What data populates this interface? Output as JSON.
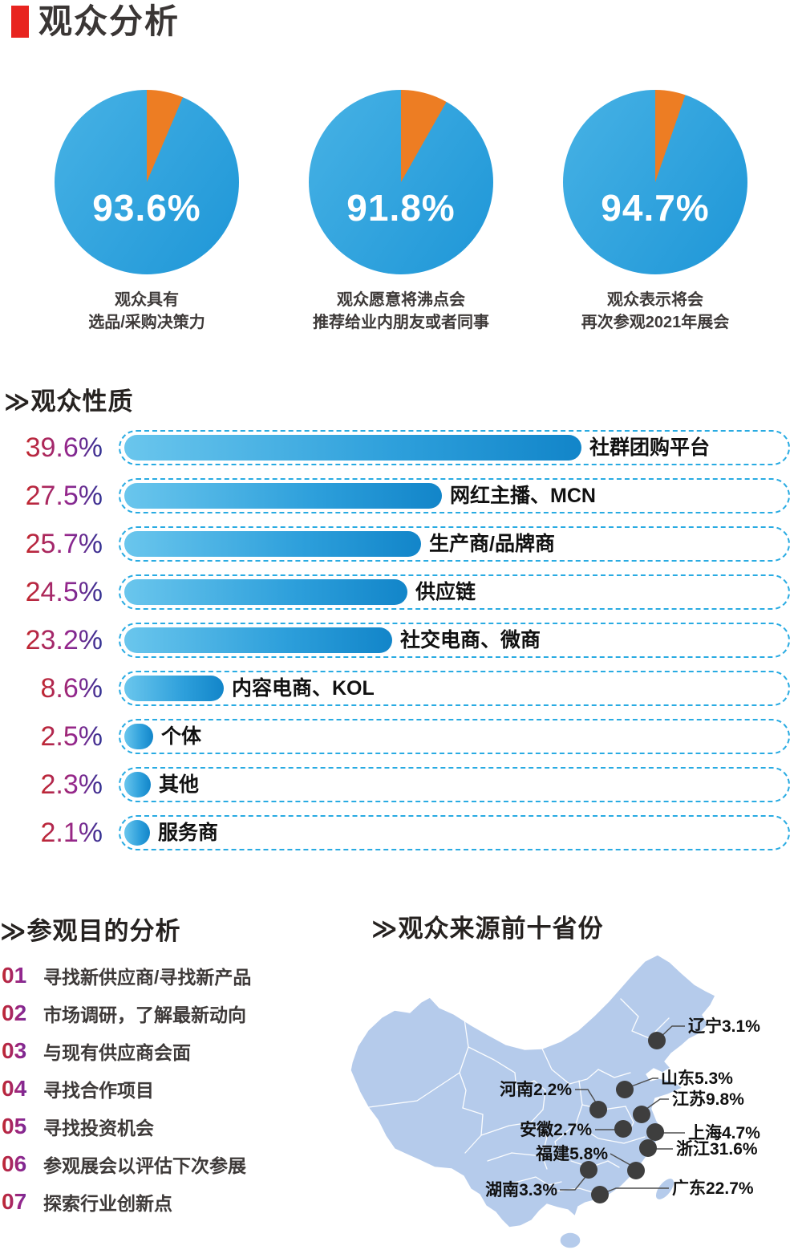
{
  "page_title": "观众分析",
  "colors": {
    "accent_red": "#E8241F",
    "pie_orange": "#ED7D23",
    "pie_blue_light": "#47B2E5",
    "pie_blue_dark": "#1E96D7",
    "bar_blue_light": "#6AC6ED",
    "bar_blue_dark": "#1285C9",
    "dash_border": "#29ABE2",
    "map_fill": "#B5CBEB",
    "map_dot": "#3E3E3E",
    "gradient_text_red": "#C1272D",
    "gradient_text_purple": "#93278F",
    "gradient_text_blue": "#2E3192"
  },
  "pies": [
    {
      "value": 93.6,
      "label": "93.6%",
      "caption_line1": "观众具有",
      "caption_line2": "选品/采购决策力"
    },
    {
      "value": 91.8,
      "label": "91.8%",
      "caption_line1": "观众愿意将沸点会",
      "caption_line2": "推荐给业内朋友或者同事"
    },
    {
      "value": 94.7,
      "label": "94.7%",
      "caption_line1": "观众表示将会",
      "caption_line2": "再次参观2021年展会"
    }
  ],
  "audience_section": {
    "title": "≫观众性质",
    "items": [
      {
        "label": "社群团购平台",
        "value": 39.6,
        "value_label": "39.6%"
      },
      {
        "label": "网红主播、MCN",
        "value": 27.5,
        "value_label": "27.5%"
      },
      {
        "label": "生产商/品牌商",
        "value": 25.7,
        "value_label": "25.7%"
      },
      {
        "label": "供应链",
        "value": 24.5,
        "value_label": "24.5%"
      },
      {
        "label": "社交电商、微商",
        "value": 23.2,
        "value_label": "23.2%"
      },
      {
        "label": "内容电商、KOL",
        "value": 8.6,
        "value_label": "8.6%"
      },
      {
        "label": "个体",
        "value": 2.5,
        "value_label": "2.5%"
      },
      {
        "label": "其他",
        "value": 2.3,
        "value_label": "2.3%"
      },
      {
        "label": "服务商",
        "value": 2.1,
        "value_label": "2.1%"
      }
    ]
  },
  "purpose_section": {
    "title": "≫参观目的分析",
    "items": [
      {
        "num": "01",
        "text": "寻找新供应商/寻找新产品"
      },
      {
        "num": "02",
        "text": "市场调研，了解最新动向"
      },
      {
        "num": "03",
        "text": "与现有供应商会面"
      },
      {
        "num": "04",
        "text": "寻找合作项目"
      },
      {
        "num": "05",
        "text": "寻找投资机会"
      },
      {
        "num": "06",
        "text": "参观展会以评估下次参展"
      },
      {
        "num": "07",
        "text": "探索行业创新点"
      }
    ]
  },
  "map_section": {
    "title": "≫观众来源前十省份",
    "provinces": [
      {
        "name": "辽宁",
        "value": 3.1,
        "value_label": "3.1%"
      },
      {
        "name": "山东",
        "value": 5.3,
        "value_label": "5.3%"
      },
      {
        "name": "河南",
        "value": 2.2,
        "value_label": "2.2%"
      },
      {
        "name": "江苏",
        "value": 9.8,
        "value_label": "9.8%"
      },
      {
        "name": "安徽",
        "value": 2.7,
        "value_label": "2.7%"
      },
      {
        "name": "上海",
        "value": 4.7,
        "value_label": "4.7%"
      },
      {
        "name": "浙江",
        "value": 31.6,
        "value_label": "31.6%"
      },
      {
        "name": "福建",
        "value": 5.8,
        "value_label": "5.8%"
      },
      {
        "name": "湖南",
        "value": 3.3,
        "value_label": "3.3%"
      },
      {
        "name": "广东",
        "value": 22.7,
        "value_label": "22.7%"
      }
    ]
  },
  "chart_data": [
    {
      "type": "pie",
      "caption": "观众具有选品/采购决策力",
      "value_pct": 93.6,
      "remainder_pct": 6.4
    },
    {
      "type": "pie",
      "caption": "观众愿意将沸点会推荐给业内朋友或者同事",
      "value_pct": 91.8,
      "remainder_pct": 8.2
    },
    {
      "type": "pie",
      "caption": "观众表示将会再次参观2021年展会",
      "value_pct": 94.7,
      "remainder_pct": 5.3
    },
    {
      "type": "bar",
      "title": "观众性质",
      "orientation": "horizontal",
      "unit": "%",
      "xlim": [
        0,
        40
      ],
      "categories": [
        "社群团购平台",
        "网红主播、MCN",
        "生产商/品牌商",
        "供应链",
        "社交电商、微商",
        "内容电商、KOL",
        "个体",
        "其他",
        "服务商"
      ],
      "values": [
        39.6,
        27.5,
        25.7,
        24.5,
        23.2,
        8.6,
        2.5,
        2.3,
        2.1
      ]
    },
    {
      "type": "map",
      "title": "观众来源前十省份",
      "region": "China",
      "unit": "%",
      "points": [
        {
          "province": "辽宁",
          "pct": 3.1
        },
        {
          "province": "山东",
          "pct": 5.3
        },
        {
          "province": "河南",
          "pct": 2.2
        },
        {
          "province": "江苏",
          "pct": 9.8
        },
        {
          "province": "安徽",
          "pct": 2.7
        },
        {
          "province": "上海",
          "pct": 4.7
        },
        {
          "province": "浙江",
          "pct": 31.6
        },
        {
          "province": "福建",
          "pct": 5.8
        },
        {
          "province": "湖南",
          "pct": 3.3
        },
        {
          "province": "广东",
          "pct": 22.7
        }
      ]
    }
  ]
}
